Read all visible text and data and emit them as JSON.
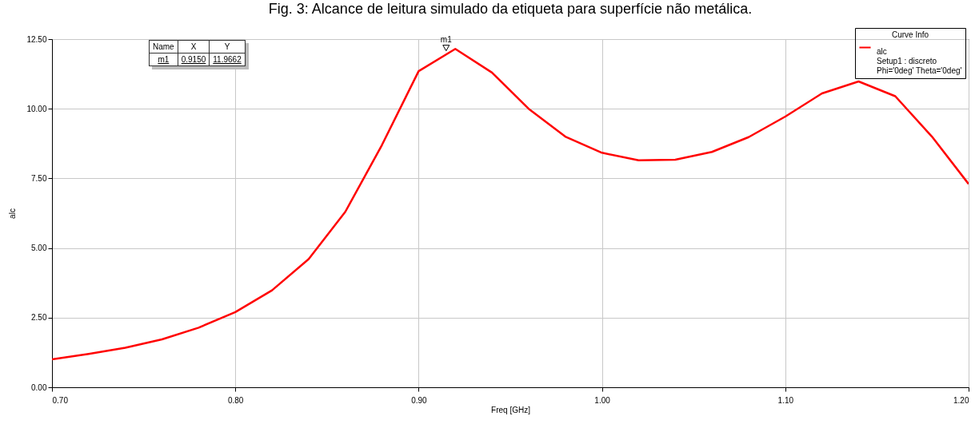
{
  "chart_data": {
    "type": "line",
    "title": "Fig. 3: Alcance de leitura simulado da etiqueta para superfície não metálica.",
    "xlabel": "Freq [GHz]",
    "ylabel": "alc",
    "legend_title": "Curve Info",
    "legend": "top right",
    "grid": true,
    "marker": "none",
    "line_style": "solid",
    "x": [
      0.7,
      0.72,
      0.74,
      0.76,
      0.78,
      0.8,
      0.82,
      0.84,
      0.86,
      0.88,
      0.9,
      0.92,
      0.94,
      0.96,
      0.98,
      1.0,
      1.02,
      1.04,
      1.06,
      1.08,
      1.1,
      1.12,
      1.14,
      1.16,
      1.18,
      1.2
    ],
    "series": [
      {
        "name": "alc",
        "color": "#ff0000",
        "values": [
          1.0,
          1.2,
          1.42,
          1.72,
          2.14,
          2.7,
          3.48,
          4.6,
          6.3,
          8.7,
          11.35,
          12.15,
          11.3,
          10.0,
          9.0,
          8.42,
          8.15,
          8.17,
          8.45,
          8.98,
          9.72,
          10.55,
          10.98,
          10.45,
          9.0,
          7.3
        ]
      }
    ],
    "xlim": [
      0.7,
      1.2
    ],
    "xticks": [
      {
        "value": 0.7,
        "label": "0.70"
      },
      {
        "value": 0.8,
        "label": "0.80"
      },
      {
        "value": 0.9,
        "label": "0.90"
      },
      {
        "value": 1.0,
        "label": "1.00"
      },
      {
        "value": 1.1,
        "label": "1.10"
      },
      {
        "value": 1.2,
        "label": "1.20"
      }
    ],
    "ylim": [
      0,
      12.5
    ],
    "yticks": [
      {
        "value": 0,
        "label": "0.00"
      },
      {
        "value": 2.5,
        "label": "2.50"
      },
      {
        "value": 5,
        "label": "5.00"
      },
      {
        "value": 7.5,
        "label": "7.50"
      },
      {
        "value": 10,
        "label": "10.00"
      },
      {
        "value": 12.5,
        "label": "12.50"
      }
    ],
    "annotations": [
      {
        "text": "m1",
        "x": 0.915,
        "y": 11.9662
      },
      "Name",
      "X",
      "Y",
      "m1",
      "0.9150",
      "11.9662",
      "Setup1 : discreto",
      "Phi='0deg' Theta='0deg'"
    ]
  }
}
